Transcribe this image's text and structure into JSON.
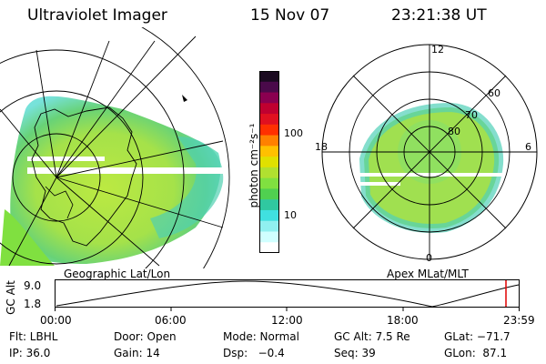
{
  "header": {
    "title": "Ultraviolet Imager",
    "date": "15 Nov 07",
    "time": "23:21:38 UT"
  },
  "left_panel": {
    "caption": "Geographic Lat/Lon"
  },
  "right_panel": {
    "caption": "Apex MLat/MLT",
    "mlt_labels": {
      "top": "12",
      "left": "18",
      "right": "6",
      "bottom": "0"
    },
    "lat_labels": [
      "60",
      "70",
      "80"
    ]
  },
  "colorbar": {
    "unit_label": "photon cm⁻²s⁻¹",
    "ticks": [
      "100",
      "10"
    ],
    "colors": [
      "#1a0a20",
      "#4a0a4a",
      "#8a0050",
      "#c00030",
      "#e01020",
      "#ff3000",
      "#ff8000",
      "#ffc000",
      "#e0e000",
      "#b0e030",
      "#80e040",
      "#50d050",
      "#30c8a0",
      "#40e0e0",
      "#90f0f0",
      "#d0ffff",
      "#ffffff"
    ]
  },
  "timeline": {
    "y_label": "GC Alt",
    "y_ticks": [
      "9.0",
      "1.8"
    ],
    "x_ticks": [
      "00:00",
      "06:00",
      "12:00",
      "18:00",
      "23:59"
    ],
    "marker_color": "#e00000"
  },
  "status": {
    "row1": {
      "flt": "Flt: LBHL",
      "door": "Door: Open",
      "mode": "Mode: Normal",
      "gc_alt": "GC Alt: 7.5 Re",
      "glat": "GLat: −71.7"
    },
    "row2": {
      "ip": "IP: 36.0",
      "gain": "Gain: 14",
      "dsp": "Dsp:   −0.4",
      "seq": "Seq: 39",
      "glon": "GLon:  87.1"
    }
  }
}
